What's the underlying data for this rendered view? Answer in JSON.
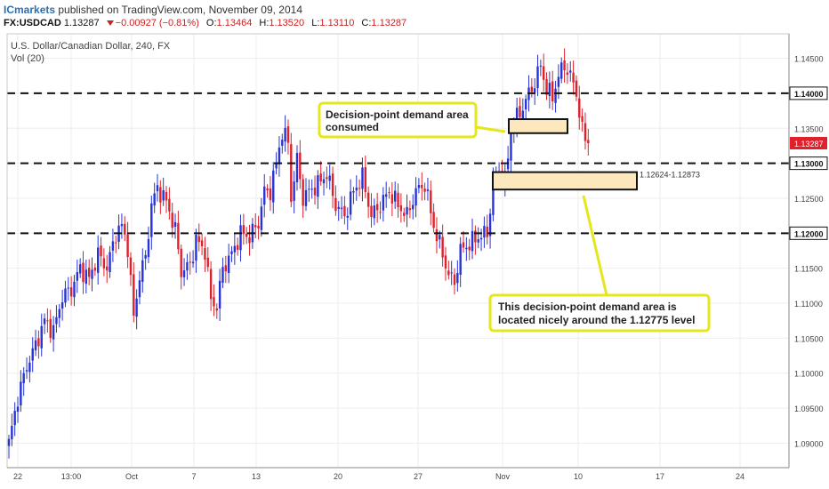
{
  "header": {
    "publisher": "ICmarkets",
    "published_text": "published on TradingView.com, November 09, 2014",
    "symbol": "FX:USDCAD",
    "last": "1.13287",
    "change": "−0.00927 (−0.81%)",
    "o_label": "O:",
    "o_value": "1.13464",
    "h_label": "H:",
    "h_value": "1.13520",
    "l_label": "L:",
    "l_value": "1.13110",
    "c_label": "C:",
    "c_value": "1.13287"
  },
  "chart_title": "U.S. Dollar/Canadian Dollar, 240, FX",
  "vol_label": "Vol (20)",
  "colors": {
    "up": "#2733d6",
    "down": "#e0202a",
    "price_tag": "#e0202a",
    "zone_fill": "#fde8bd",
    "callout_border": "#e6e61c",
    "level_line": "#111111"
  },
  "chart_data": {
    "type": "candlestick",
    "title": "U.S. Dollar/Canadian Dollar, 240, FX",
    "ylim": [
      1.0865,
      1.1485
    ],
    "y_ticks": [
      "1.14500",
      "1.14000",
      "1.13500",
      "1.13000",
      "1.12500",
      "1.12000",
      "1.11500",
      "1.11000",
      "1.10500",
      "1.10000",
      "1.09500",
      "1.09000"
    ],
    "x_ticks": [
      "22",
      "13:00",
      "Oct",
      "7",
      "13",
      "20",
      "27",
      "Nov",
      "10",
      "17",
      "24"
    ],
    "anchors": [
      [
        0,
        1.09
      ],
      [
        3,
        1.0965
      ],
      [
        6,
        1.101
      ],
      [
        9,
        1.104
      ],
      [
        12,
        1.1075
      ],
      [
        15,
        1.106
      ],
      [
        18,
        1.111
      ],
      [
        21,
        1.112
      ],
      [
        24,
        1.115
      ],
      [
        27,
        1.1135
      ],
      [
        30,
        1.117
      ],
      [
        33,
        1.115
      ],
      [
        36,
        1.12
      ],
      [
        38,
        1.121
      ],
      [
        40,
        1.118
      ],
      [
        42,
        1.108
      ],
      [
        44,
        1.114
      ],
      [
        46,
        1.1165
      ],
      [
        48,
        1.124
      ],
      [
        50,
        1.1265
      ],
      [
        53,
        1.1245
      ],
      [
        56,
        1.1205
      ],
      [
        58,
        1.1145
      ],
      [
        61,
        1.1155
      ],
      [
        63,
        1.119
      ],
      [
        66,
        1.1175
      ],
      [
        68,
        1.1105
      ],
      [
        70,
        1.1095
      ],
      [
        72,
        1.115
      ],
      [
        75,
        1.117
      ],
      [
        78,
        1.12
      ],
      [
        81,
        1.1195
      ],
      [
        84,
        1.1215
      ],
      [
        86,
        1.126
      ],
      [
        88,
        1.126
      ],
      [
        90,
        1.13
      ],
      [
        92,
        1.1345
      ],
      [
        94,
        1.133
      ],
      [
        95,
        1.125
      ],
      [
        97,
        1.1305
      ],
      [
        99,
        1.125
      ],
      [
        101,
        1.126
      ],
      [
        104,
        1.127
      ],
      [
        107,
        1.1285
      ],
      [
        110,
        1.124
      ],
      [
        113,
        1.1225
      ],
      [
        116,
        1.126
      ],
      [
        119,
        1.128
      ],
      [
        122,
        1.1225
      ],
      [
        125,
        1.124
      ],
      [
        128,
        1.126
      ],
      [
        131,
        1.124
      ],
      [
        134,
        1.1225
      ],
      [
        137,
        1.126
      ],
      [
        140,
        1.127
      ],
      [
        143,
        1.121
      ],
      [
        146,
        1.117
      ],
      [
        148,
        1.114
      ],
      [
        150,
        1.113
      ],
      [
        152,
        1.1175
      ],
      [
        155,
        1.1185
      ],
      [
        158,
        1.1195
      ],
      [
        161,
        1.12
      ],
      [
        163,
        1.127
      ],
      [
        165,
        1.129
      ],
      [
        167,
        1.1275
      ],
      [
        169,
        1.1345
      ],
      [
        171,
        1.1365
      ],
      [
        173,
        1.138
      ],
      [
        175,
        1.14
      ],
      [
        177,
        1.1415
      ],
      [
        179,
        1.144
      ],
      [
        181,
        1.1405
      ],
      [
        183,
        1.1395
      ],
      [
        185,
        1.1425
      ],
      [
        187,
        1.144
      ],
      [
        189,
        1.1425
      ],
      [
        191,
        1.14
      ],
      [
        193,
        1.1345
      ],
      [
        195,
        1.1329
      ]
    ],
    "levels": [
      {
        "value": 1.14,
        "label": "1.14000"
      },
      {
        "value": 1.13,
        "label": "1.13000"
      },
      {
        "value": 1.12,
        "label": "1.12000"
      }
    ],
    "current_price": {
      "value": 1.13287,
      "label": "1.13287"
    },
    "zones": [
      {
        "name": "consumed-demand-zone",
        "x_start": "Nov 1",
        "x_end": "Nov 7",
        "y_low": 1.1343,
        "y_high": 1.1363,
        "label": ""
      },
      {
        "name": "demand-zone",
        "x_start": "Oct 31",
        "x_end": "Nov 15",
        "y_low": 1.12624,
        "y_high": 1.12873,
        "label": "1.12624-1.12873"
      }
    ],
    "annotations": [
      "Decision-point demand area consumed",
      "This decision-point demand area is located nicely around the 1.12775 level"
    ]
  }
}
